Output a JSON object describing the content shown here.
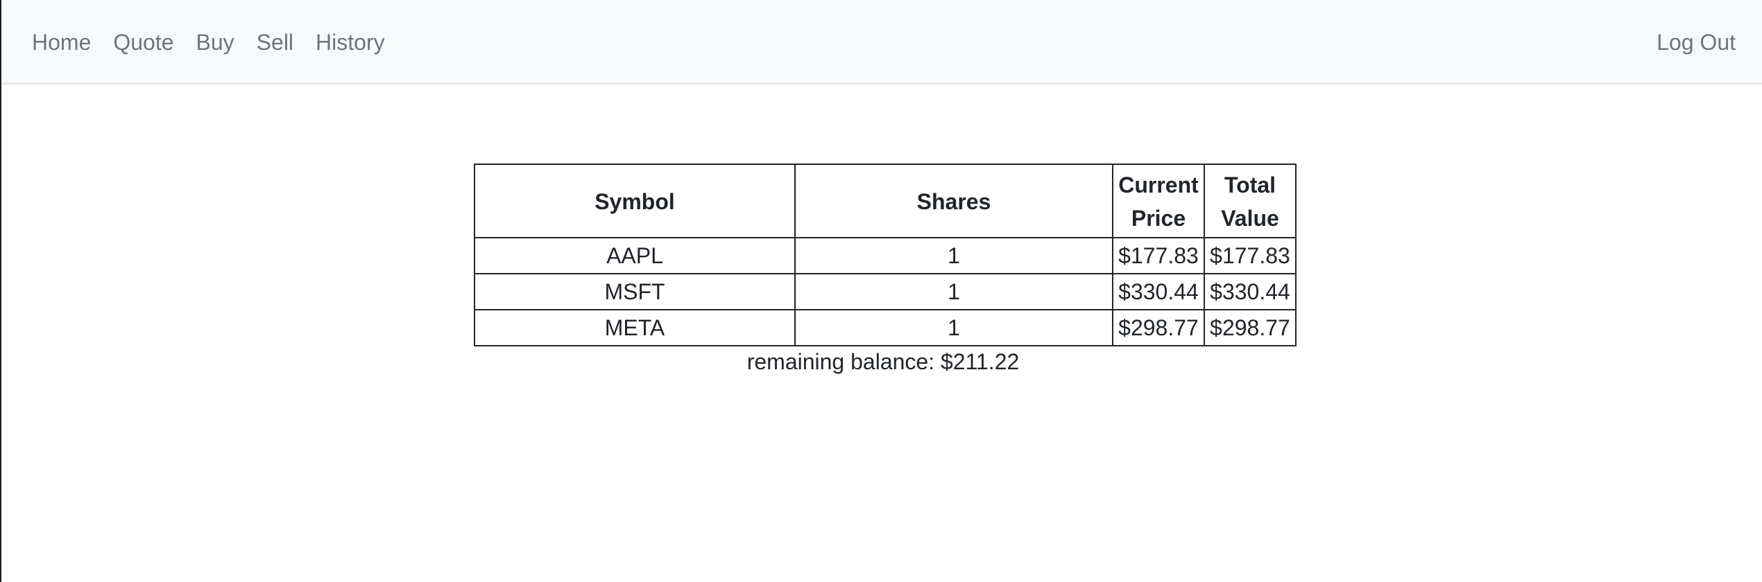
{
  "nav": {
    "links": [
      "Home",
      "Quote",
      "Buy",
      "Sell",
      "History"
    ],
    "logout": "Log Out"
  },
  "table": {
    "headers": {
      "symbol": "Symbol",
      "shares": "Shares",
      "current_price_line1": "Current",
      "current_price_line2": "Price",
      "total_value_line1": "Total",
      "total_value_line2": "Value"
    },
    "rows": [
      {
        "symbol": "AAPL",
        "shares": "1",
        "price": "$177.83",
        "total": "$177.83"
      },
      {
        "symbol": "MSFT",
        "shares": "1",
        "price": "$330.44",
        "total": "$330.44"
      },
      {
        "symbol": "META",
        "shares": "1",
        "price": "$298.77",
        "total": "$298.77"
      }
    ]
  },
  "balance": "remaining balance: $211.22"
}
